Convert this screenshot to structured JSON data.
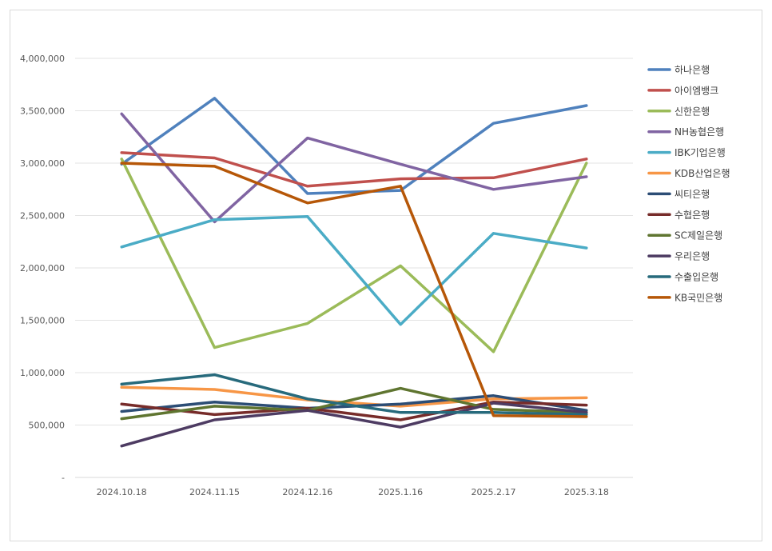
{
  "chart_data": {
    "type": "line",
    "x": [
      "2024.10.18",
      "2024.11.15",
      "2024.12.16",
      "2025.1.16",
      "2025.2.17",
      "2025.3.18"
    ],
    "ylim": [
      0,
      4000000
    ],
    "yticks": [
      0,
      500000,
      1000000,
      1500000,
      2000000,
      2500000,
      3000000,
      3500000,
      4000000
    ],
    "ytick_labels": [
      "-",
      "500,000",
      "1,000,000",
      "1,500,000",
      "2,000,000",
      "2,500,000",
      "3,000,000",
      "3,500,000",
      "4,000,000"
    ],
    "grid": true,
    "legend_position": "right",
    "series": [
      {
        "name": "하나은행",
        "color": "#4F81BD",
        "values": [
          2990000,
          3620000,
          2710000,
          2740000,
          3380000,
          3550000
        ]
      },
      {
        "name": "아이엠뱅크",
        "color": "#C0504D",
        "values": [
          3100000,
          3050000,
          2780000,
          2850000,
          2860000,
          3040000
        ]
      },
      {
        "name": "신한은행",
        "color": "#9BBB59",
        "values": [
          3040000,
          1240000,
          1470000,
          2020000,
          1200000,
          3000000
        ]
      },
      {
        "name": "NH농협은행",
        "color": "#8064A2",
        "values": [
          3470000,
          2440000,
          3240000,
          2990000,
          2750000,
          2870000
        ]
      },
      {
        "name": "IBK기업은행",
        "color": "#4BACC6",
        "values": [
          2200000,
          2460000,
          2490000,
          1460000,
          2330000,
          2190000
        ]
      },
      {
        "name": "KDB산업은행",
        "color": "#F79646",
        "values": [
          860000,
          840000,
          740000,
          680000,
          750000,
          760000
        ]
      },
      {
        "name": "씨티은행",
        "color": "#2C4D75",
        "values": [
          630000,
          720000,
          660000,
          700000,
          780000,
          640000
        ]
      },
      {
        "name": "수협은행",
        "color": "#772C2A",
        "values": [
          700000,
          600000,
          660000,
          550000,
          720000,
          690000
        ]
      },
      {
        "name": "SC제일은행",
        "color": "#5F7530",
        "values": [
          560000,
          680000,
          640000,
          850000,
          650000,
          620000
        ]
      },
      {
        "name": "우리은행",
        "color": "#4D3B62",
        "values": [
          300000,
          550000,
          640000,
          480000,
          710000,
          620000
        ]
      },
      {
        "name": "수출입은행",
        "color": "#276A7C",
        "values": [
          890000,
          980000,
          750000,
          620000,
          620000,
          600000
        ]
      },
      {
        "name": "KB국민은행",
        "color": "#B65708",
        "values": [
          3000000,
          2970000,
          2620000,
          2780000,
          590000,
          580000
        ]
      }
    ]
  }
}
